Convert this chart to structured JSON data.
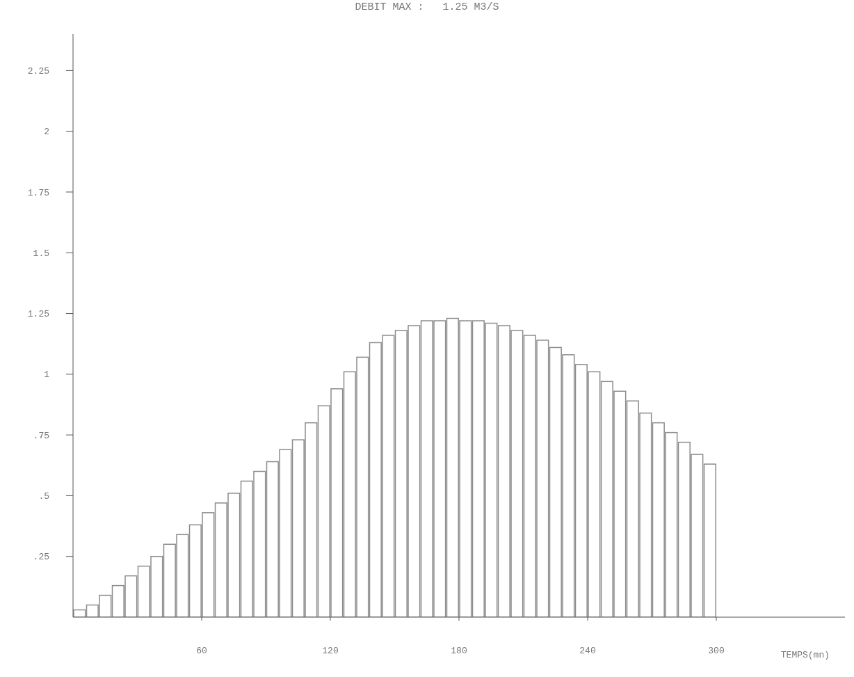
{
  "chart_data": {
    "type": "histogram",
    "title": "DEBIT MAX :   1.25 M3/S",
    "xlabel": "TEMPS(mn)",
    "bins": [
      0,
      6,
      12,
      18,
      24,
      30,
      36,
      42,
      48,
      54,
      60,
      66,
      72,
      78,
      84,
      90,
      96,
      102,
      108,
      114,
      120,
      126,
      132,
      138,
      144,
      150,
      156,
      162,
      168,
      174,
      180,
      186,
      192,
      198,
      204,
      210,
      216,
      222,
      228,
      234,
      240,
      246,
      252,
      258,
      264,
      270,
      276,
      282,
      288,
      294,
      300
    ],
    "values": [
      0.03,
      0.05,
      0.09,
      0.13,
      0.17,
      0.21,
      0.25,
      0.3,
      0.34,
      0.38,
      0.43,
      0.47,
      0.51,
      0.56,
      0.6,
      0.64,
      0.69,
      0.73,
      0.8,
      0.87,
      0.94,
      1.01,
      1.07,
      1.13,
      1.16,
      1.18,
      1.2,
      1.22,
      1.22,
      1.23,
      1.22,
      1.22,
      1.21,
      1.2,
      1.18,
      1.16,
      1.14,
      1.11,
      1.08,
      1.04,
      1.01,
      0.97,
      0.93,
      0.89,
      0.84,
      0.8,
      0.76,
      0.72,
      0.67,
      0.63
    ],
    "color": "#8c8c8c",
    "xlim": [
      0,
      360
    ],
    "xticks": [
      60,
      120,
      180,
      240,
      300
    ],
    "ylim": [
      0,
      2.4
    ],
    "yticks": [
      {
        "value": 0.25,
        "label": ".25"
      },
      {
        "value": 0.5,
        "label": ".5"
      },
      {
        "value": 0.75,
        "label": ".75"
      },
      1,
      1.25,
      1.5,
      1.75,
      2,
      2.25
    ],
    "grid": false
  }
}
